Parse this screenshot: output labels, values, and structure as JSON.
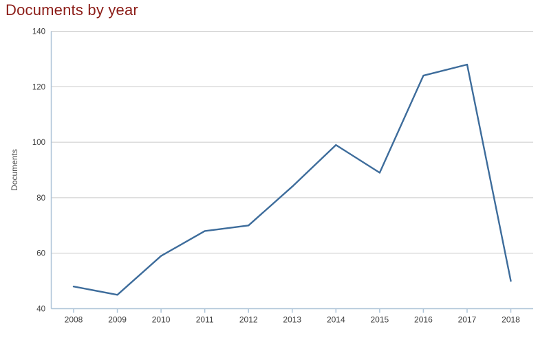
{
  "header": {
    "title": "Documents by year"
  },
  "colors": {
    "title": "#8c1d18",
    "line": "#3d6c9b",
    "axis_border": "#aec4d8",
    "gridline": "#c9c9c9",
    "tick_label": "#3d3d3d",
    "axis_title": "#4f4f4f",
    "background": "#ffffff"
  },
  "chart_data": {
    "type": "line",
    "title": "Documents by year",
    "categories": [
      "2008",
      "2009",
      "2010",
      "2011",
      "2012",
      "2013",
      "2014",
      "2015",
      "2016",
      "2017",
      "2018"
    ],
    "values": [
      48,
      45,
      59,
      68,
      70,
      84,
      99,
      89,
      124,
      128,
      50
    ],
    "xlabel": "",
    "ylabel": "Documents",
    "ylim": [
      40,
      140
    ],
    "yticks": [
      40,
      60,
      80,
      100,
      120,
      140
    ],
    "grid": true,
    "legend": "none"
  }
}
